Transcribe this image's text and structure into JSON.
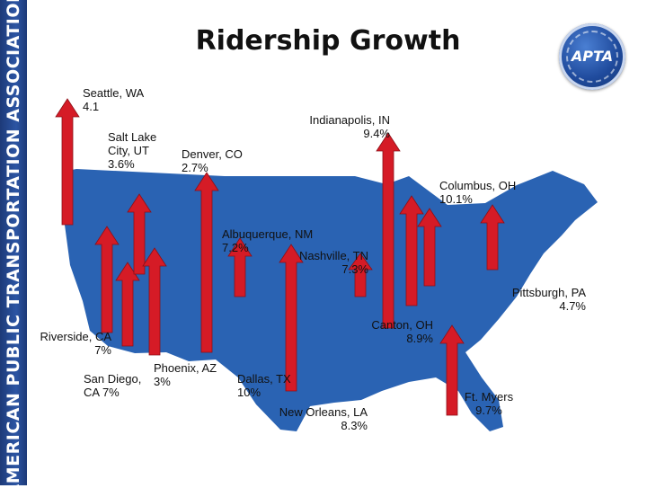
{
  "title": "Ridership Growth",
  "sidebar_text": "AMERICAN PUBLIC TRANSPORTATION ASSOCIATION",
  "logo_text": "APTA",
  "colors": {
    "map_fill": "#2a63b3",
    "arrow": "#d51b26",
    "sidebar": "#1d3a78"
  },
  "cities": [
    {
      "id": "seattle",
      "line1": "Seattle, WA",
      "line2": "4.1"
    },
    {
      "id": "salt-lake",
      "line1": "Salt Lake",
      "line2": "City, UT",
      "line3": "3.6%"
    },
    {
      "id": "denver",
      "line1": "Denver, CO",
      "line2": "2.7%"
    },
    {
      "id": "indianapolis",
      "line1": "Indianapolis, IN",
      "line2": "9.4%"
    },
    {
      "id": "columbus",
      "line1": "Columbus, OH",
      "line2": "10.1%"
    },
    {
      "id": "albuquerque",
      "line1": "Albuquerque, NM",
      "line2": "7.2%"
    },
    {
      "id": "nashville",
      "line1": "Nashville, TN",
      "line2": "7.3%"
    },
    {
      "id": "pittsburgh",
      "line1": "Pittsburgh, PA",
      "line2": "4.7%"
    },
    {
      "id": "canton",
      "line1": "Canton, OH",
      "line2": "8.9%"
    },
    {
      "id": "riverside",
      "line1": "Riverside, CA",
      "line2": "7%"
    },
    {
      "id": "san-diego",
      "line1": "San Diego,",
      "line2": "CA 7%"
    },
    {
      "id": "phoenix",
      "line1": "Phoenix, AZ",
      "line2": "3%"
    },
    {
      "id": "dallas",
      "line1": "Dallas, TX",
      "line2": "10%"
    },
    {
      "id": "new-orleans",
      "line1": "New Orleans, LA",
      "line2": "8.3%"
    },
    {
      "id": "ft-myers",
      "line1": "Ft. Myers",
      "line2": "9.7%"
    }
  ]
}
